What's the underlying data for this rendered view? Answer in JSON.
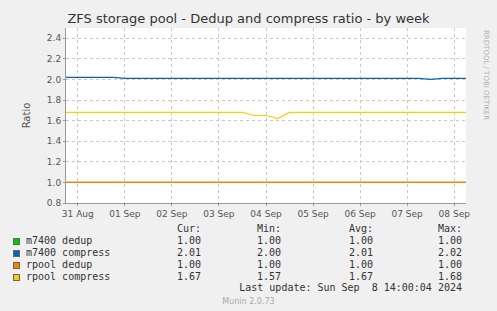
{
  "chart_data": {
    "type": "line",
    "title": "ZFS storage pool - Dedup and compress ratio - by week",
    "y_label": "Ratio",
    "categories": [
      null,
      "31 Aug",
      null,
      null,
      null,
      "01 Sep",
      null,
      null,
      null,
      "02 Sep",
      null,
      null,
      null,
      "03 Sep",
      null,
      null,
      null,
      "04 Sep",
      null,
      null,
      null,
      "05 Sep",
      null,
      null,
      null,
      "06 Sep",
      null,
      null,
      null,
      "07 Sep",
      null,
      null,
      null,
      "08 Sep",
      null
    ],
    "series": [
      {
        "name": "m7400 dedup",
        "color": "#00CC00",
        "values": [
          1.0,
          1.0,
          1.0,
          1.0,
          1.0,
          1.0,
          1.0,
          1.0,
          1.0,
          1.0,
          1.0,
          1.0,
          1.0,
          1.0,
          1.0,
          1.0,
          1.0,
          1.0,
          1.0,
          1.0,
          1.0,
          1.0,
          1.0,
          1.0,
          1.0,
          1.0,
          1.0,
          1.0,
          1.0,
          1.0,
          1.0,
          1.0,
          1.0,
          1.0,
          1.0
        ],
        "stats": [
          "1.00",
          "1.00",
          "1.00",
          "1.00"
        ]
      },
      {
        "name": "m7400 compress",
        "color": "#0066B3",
        "values": [
          2.02,
          2.02,
          2.02,
          2.02,
          2.02,
          2.01,
          2.01,
          2.01,
          2.01,
          2.01,
          2.01,
          2.01,
          2.01,
          2.01,
          2.01,
          2.01,
          2.01,
          2.01,
          2.01,
          2.01,
          2.01,
          2.01,
          2.01,
          2.01,
          2.01,
          2.01,
          2.01,
          2.01,
          2.01,
          2.01,
          2.01,
          2.0,
          2.01,
          2.01,
          2.01
        ],
        "stats": [
          "2.01",
          "2.00",
          "2.01",
          "2.02"
        ]
      },
      {
        "name": "rpool dedup",
        "color": "#FF8000",
        "values": [
          1.0,
          1.0,
          1.0,
          1.0,
          1.0,
          1.0,
          1.0,
          1.0,
          1.0,
          1.0,
          1.0,
          1.0,
          1.0,
          1.0,
          1.0,
          1.0,
          1.0,
          1.0,
          1.0,
          1.0,
          1.0,
          1.0,
          1.0,
          1.0,
          1.0,
          1.0,
          1.0,
          1.0,
          1.0,
          1.0,
          1.0,
          1.0,
          1.0,
          1.0,
          1.0
        ],
        "stats": [
          "1.00",
          "1.00",
          "1.00",
          "1.00"
        ]
      },
      {
        "name": "rpool compress",
        "color": "#FFCC00",
        "values": [
          1.68,
          1.68,
          1.68,
          1.68,
          1.68,
          1.68,
          1.68,
          1.68,
          1.68,
          1.68,
          1.68,
          1.68,
          1.68,
          1.68,
          1.68,
          1.68,
          1.65,
          1.65,
          1.62,
          1.68,
          1.68,
          1.68,
          1.68,
          1.68,
          1.68,
          1.68,
          1.68,
          1.68,
          1.68,
          1.68,
          1.68,
          1.68,
          1.68,
          1.68,
          1.68
        ],
        "stats": [
          "1.67",
          "1.57",
          "1.67",
          "1.68"
        ]
      }
    ],
    "stats_columns": [
      "Cur:",
      "Min:",
      "Avg:",
      "Max:"
    ],
    "ylim": [
      0.8,
      2.5
    ],
    "yticks": [
      0.8,
      {
        "value": 1,
        "label": "1.0"
      },
      1.2,
      1.4,
      1.6,
      1.8,
      {
        "value": 2,
        "label": "2.0"
      },
      2.2,
      2.4
    ],
    "grid": true,
    "footer": "Last update: Sun Sep  8 14:00:04 2024",
    "credit": "Munin 2.0.73",
    "watermark": "RRDTOOL / TOBI OETIKER"
  }
}
